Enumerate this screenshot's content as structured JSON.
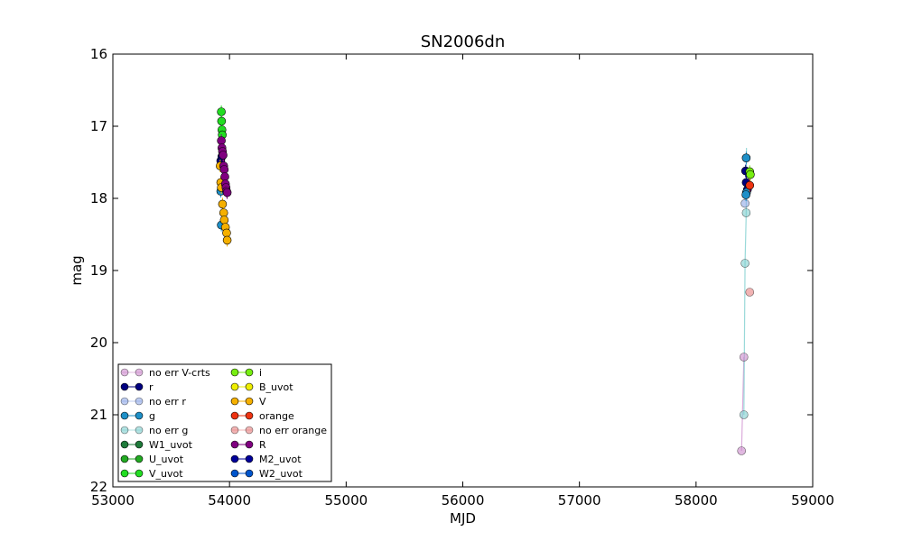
{
  "chart_data": {
    "type": "scatter",
    "title": "SN2006dn",
    "xlabel": "MJD",
    "ylabel": "mag",
    "xlim": [
      53000,
      59000
    ],
    "ylim": [
      16,
      22
    ],
    "y_inverted": true,
    "xticks": [
      53000,
      54000,
      55000,
      56000,
      57000,
      58000,
      59000
    ],
    "yticks": [
      16,
      17,
      18,
      19,
      20,
      21,
      22
    ],
    "legend_position": "lower-left",
    "series": [
      {
        "name": "no err V-crts",
        "color": "#cc88cc",
        "alpha": 0.6,
        "line": true,
        "points": [
          [
            58390,
            21.5
          ],
          [
            58410,
            20.2
          ]
        ]
      },
      {
        "name": "r",
        "color": "#000080",
        "alpha": 1,
        "line": false,
        "points": [
          [
            53925,
            17.48
          ],
          [
            53935,
            17.42
          ],
          [
            58425,
            17.62
          ],
          [
            58430,
            17.78
          ],
          [
            58440,
            17.88
          ]
        ]
      },
      {
        "name": "no err r",
        "color": "#8fa8e6",
        "alpha": 0.6,
        "line": true,
        "points": [
          [
            58420,
            18.07
          ]
        ]
      },
      {
        "name": "g",
        "color": "#1e90c8",
        "alpha": 1,
        "line": false,
        "points": [
          [
            53925,
            17.9
          ],
          [
            53930,
            18.37
          ],
          [
            58430,
            17.44
          ],
          [
            58432,
            17.92
          ],
          [
            58428,
            17.95
          ]
        ]
      },
      {
        "name": "no err g",
        "color": "#7fcfcf",
        "alpha": 0.6,
        "line": true,
        "points": [
          [
            58410,
            21.0
          ],
          [
            58420,
            18.9
          ],
          [
            58430,
            18.2
          ]
        ]
      },
      {
        "name": "W1_uvot",
        "color": "#1e7a3a",
        "alpha": 1,
        "line": false,
        "points": []
      },
      {
        "name": "U_uvot",
        "color": "#22aa22",
        "alpha": 1,
        "line": false,
        "points": []
      },
      {
        "name": "V_uvot",
        "color": "#22dd22",
        "alpha": 1,
        "line": false,
        "points": [
          [
            53930,
            16.8
          ],
          [
            53932,
            16.93
          ],
          [
            53935,
            17.05
          ],
          [
            53938,
            17.12
          ]
        ]
      },
      {
        "name": "i",
        "color": "#77ee11",
        "alpha": 1,
        "line": false,
        "points": [
          [
            58460,
            17.63
          ],
          [
            58465,
            17.67
          ]
        ]
      },
      {
        "name": "B_uvot",
        "color": "#eeee00",
        "alpha": 1,
        "line": false,
        "points": []
      },
      {
        "name": "V",
        "color": "#f5b000",
        "alpha": 1,
        "line": false,
        "points": [
          [
            53920,
            17.55
          ],
          [
            53925,
            17.78
          ],
          [
            53930,
            17.85
          ],
          [
            53940,
            18.08
          ],
          [
            53950,
            18.2
          ],
          [
            53955,
            18.3
          ],
          [
            53965,
            18.4
          ],
          [
            53975,
            18.48
          ],
          [
            53980,
            18.58
          ]
        ]
      },
      {
        "name": "orange",
        "color": "#ee3311",
        "alpha": 1,
        "line": false,
        "points": [
          [
            58460,
            17.82
          ]
        ]
      },
      {
        "name": "no err orange",
        "color": "#e88080",
        "alpha": 0.6,
        "line": true,
        "points": [
          [
            58460,
            19.3
          ]
        ]
      },
      {
        "name": "R",
        "color": "#800080",
        "alpha": 1,
        "line": false,
        "points": [
          [
            53930,
            17.2
          ],
          [
            53935,
            17.3
          ],
          [
            53940,
            17.35
          ],
          [
            53945,
            17.4
          ],
          [
            53950,
            17.55
          ],
          [
            53955,
            17.6
          ],
          [
            53960,
            17.7
          ],
          [
            53965,
            17.8
          ],
          [
            53970,
            17.85
          ],
          [
            53975,
            17.9
          ],
          [
            53980,
            17.92
          ]
        ]
      },
      {
        "name": "M2_uvot",
        "color": "#000099",
        "alpha": 1,
        "line": false,
        "points": []
      },
      {
        "name": "W2_uvot",
        "color": "#0055cc",
        "alpha": 1,
        "line": false,
        "points": []
      }
    ],
    "lines": [
      {
        "color": "#cc88cc",
        "alpha": 0.7,
        "points": [
          [
            58390,
            21.5
          ],
          [
            58410,
            20.2
          ]
        ]
      },
      {
        "color": "#7fcfcf",
        "alpha": 0.8,
        "points": [
          [
            58410,
            21.0
          ],
          [
            58420,
            18.9
          ],
          [
            58430,
            18.2
          ],
          [
            58432,
            17.3
          ]
        ]
      }
    ]
  }
}
